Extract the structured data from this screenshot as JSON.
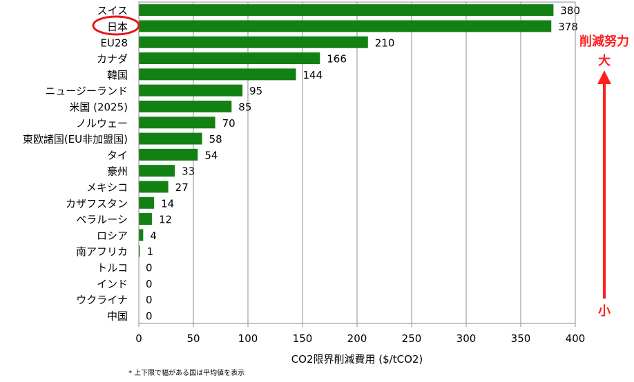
{
  "chart_data": {
    "type": "bar",
    "orientation": "horizontal",
    "categories": [
      "スイス",
      "日本",
      "EU28",
      "カナダ",
      "韓国",
      "ニュージーランド",
      "米国 (2025)",
      "ノルウェー",
      "東欧諸国(EU非加盟国)",
      "タイ",
      "豪州",
      "メキシコ",
      "カザフスタン",
      "ベラルーシ",
      "ロシア",
      "南アフリカ",
      "トルコ",
      "インド",
      "ウクライナ",
      "中国"
    ],
    "values": [
      380,
      378,
      210,
      166,
      144,
      95,
      85,
      70,
      58,
      54,
      33,
      27,
      14,
      12,
      4,
      1,
      0,
      0,
      0,
      0
    ],
    "xlabel": "CO2限界削減費用 ($/tCO2)",
    "xlim": [
      0,
      400
    ],
    "xticks": [
      0,
      50,
      100,
      150,
      200,
      250,
      300,
      350,
      400
    ],
    "grid": "vertical",
    "bar_color": "#138013",
    "highlight_category": "日本",
    "highlight_color": "#e8141a",
    "footnote": "* 上下限で幅がある国は平均値を表示",
    "annotation": {
      "top_label_1": "削減努力",
      "top_label_2": "大",
      "bottom_label": "小",
      "color": "#ff1f1f"
    }
  }
}
